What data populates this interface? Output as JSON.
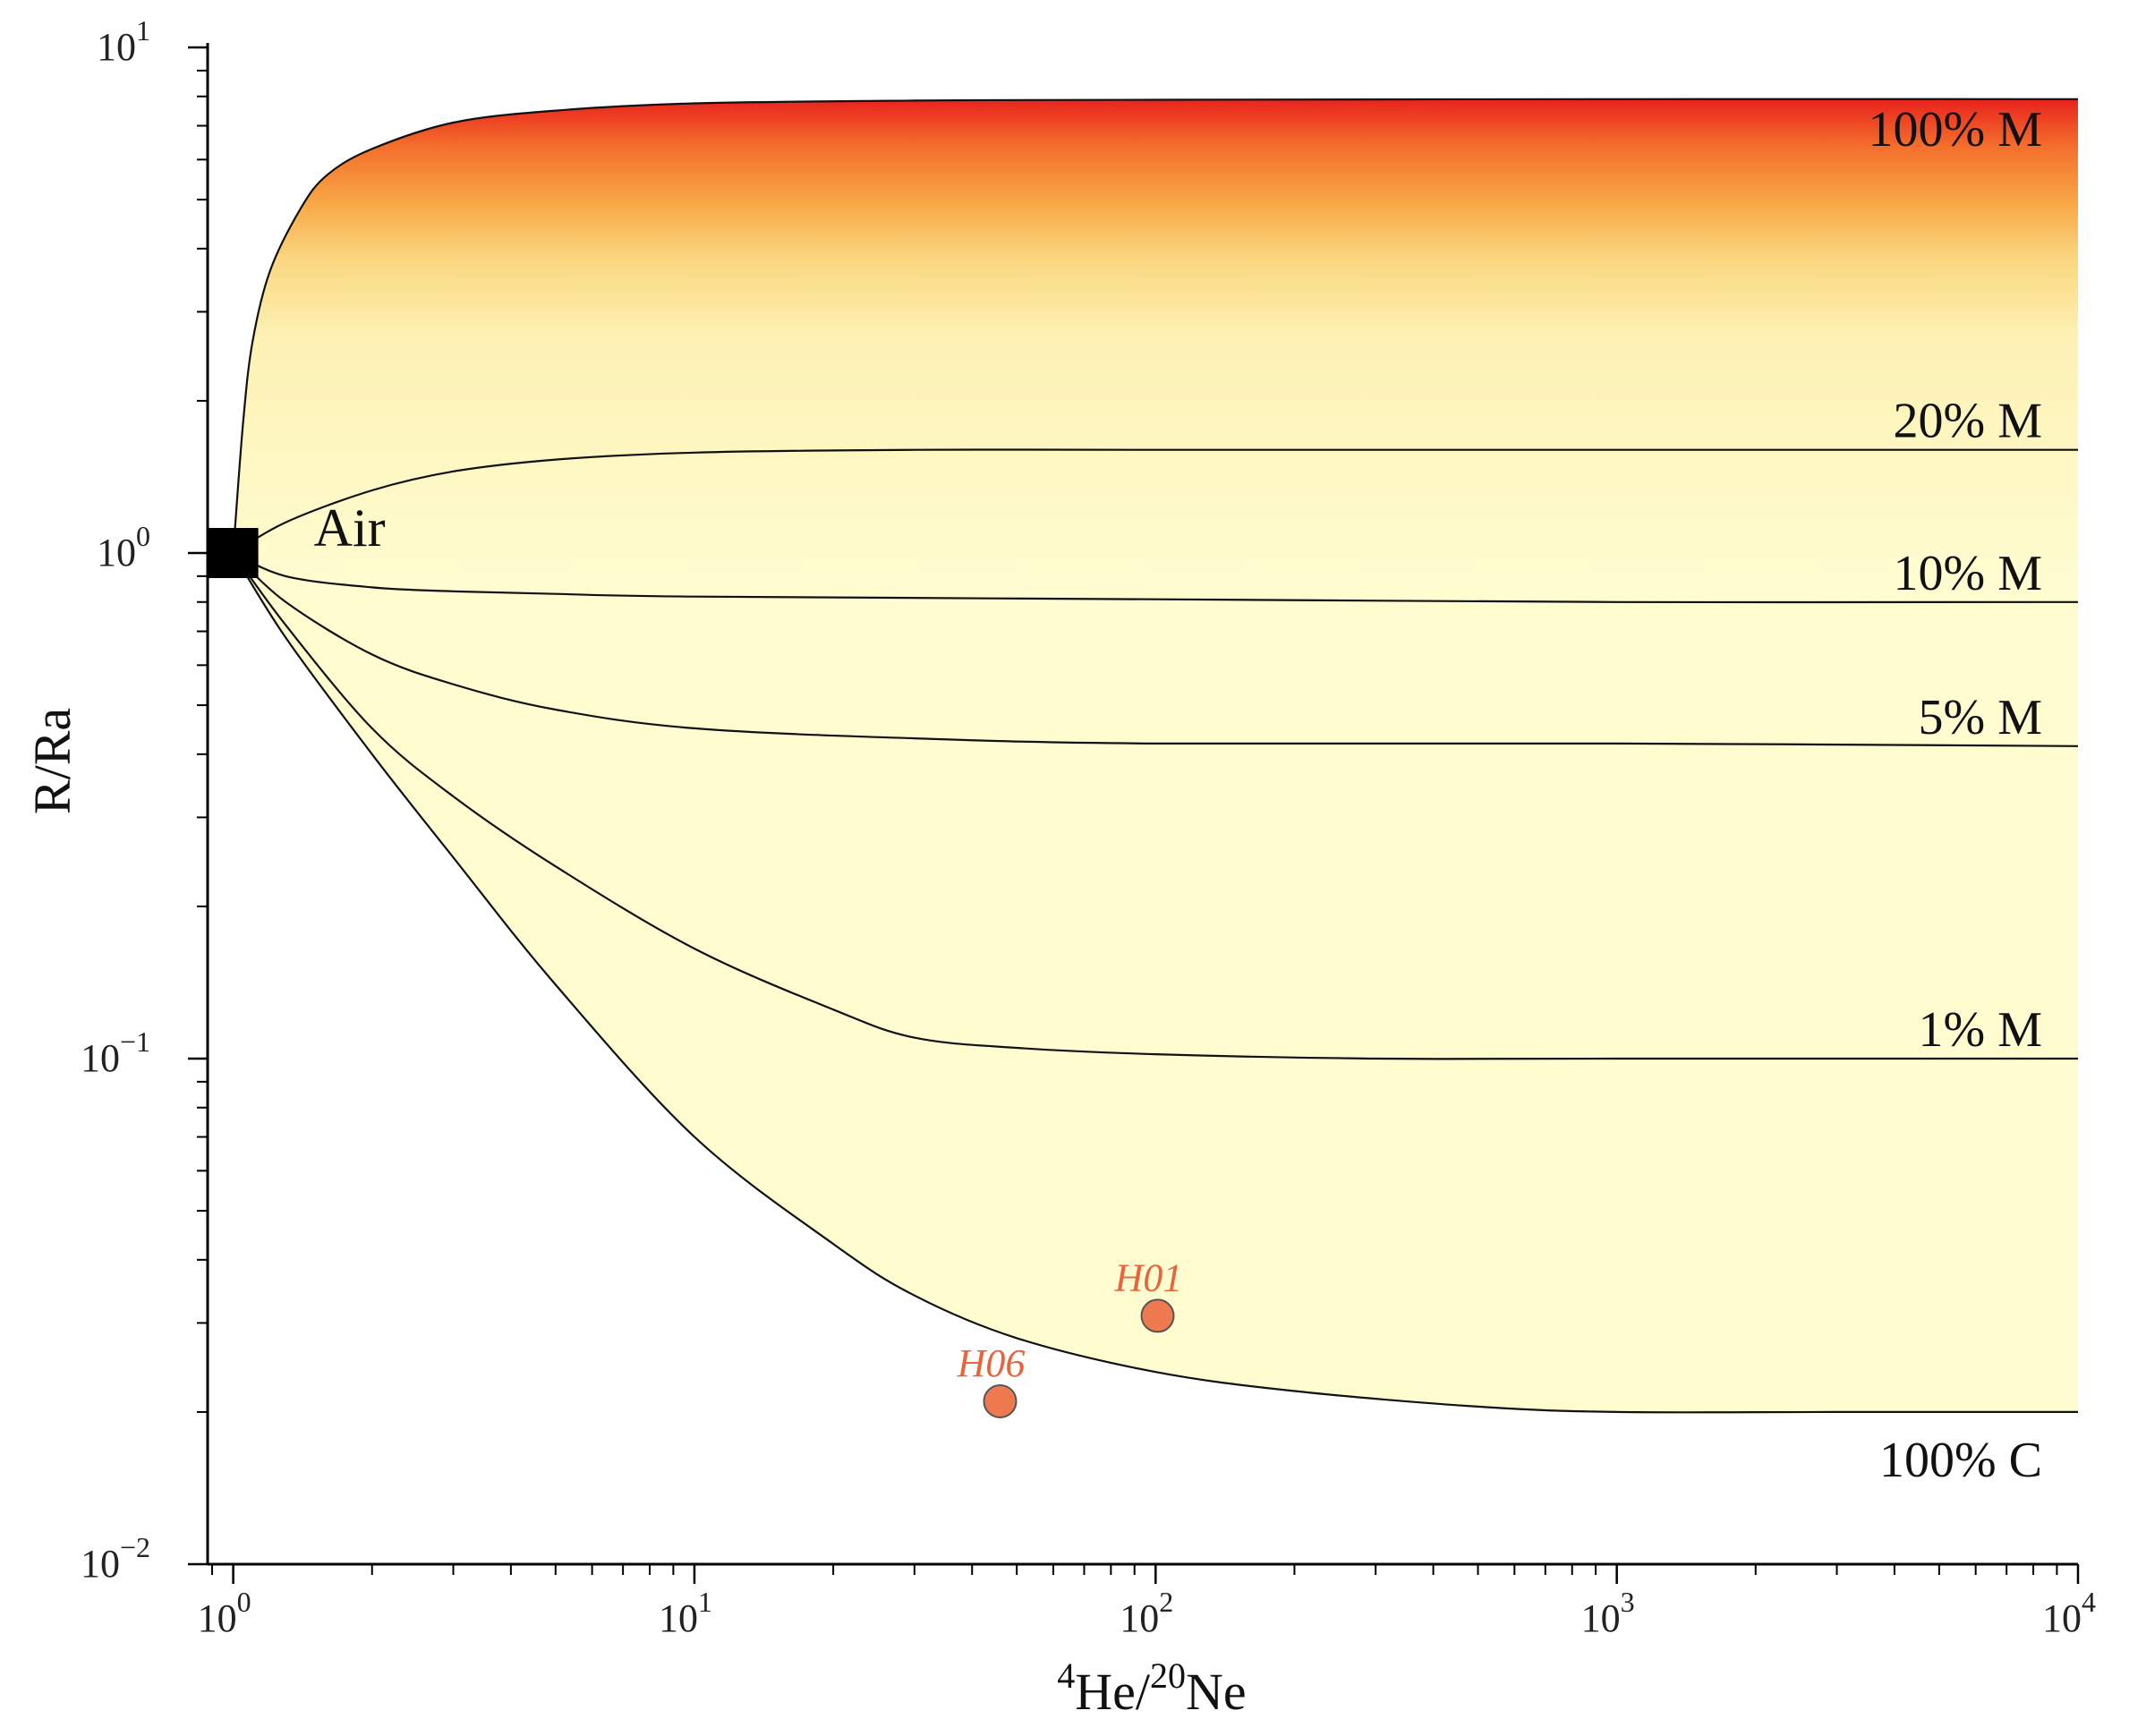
{
  "chart_data": {
    "type": "line",
    "x_scale": "log",
    "y_scale": "log",
    "xlim": [
      0.88,
      10000
    ],
    "ylim": [
      0.01,
      10
    ],
    "xlabel": {
      "sup1": "4",
      "base1": "He/",
      "sup2": "20",
      "base2": "Ne"
    },
    "ylabel": "R/Ra",
    "x_ticks": [
      {
        "value": 1,
        "base": "10",
        "exp": "0"
      },
      {
        "value": 10,
        "base": "10",
        "exp": "1"
      },
      {
        "value": 100,
        "base": "10",
        "exp": "2"
      },
      {
        "value": 1000,
        "base": "10",
        "exp": "3"
      },
      {
        "value": 10000,
        "base": "10",
        "exp": "4"
      }
    ],
    "y_ticks": [
      {
        "value": 0.01,
        "base": "10",
        "exp": "−2"
      },
      {
        "value": 0.1,
        "base": "10",
        "exp": "−1"
      },
      {
        "value": 1,
        "base": "10",
        "exp": "0"
      },
      {
        "value": 10,
        "base": "10",
        "exp": "1"
      }
    ],
    "gradient_colors": [
      "#e8231d",
      "#f46f2c",
      "#f9a847",
      "#fbd882",
      "#fdf2b4",
      "#fffcd0"
    ],
    "series": [
      {
        "name": "100% M",
        "x": [
          1,
          1.05,
          1.1,
          1.2,
          1.4,
          1.6,
          2,
          3,
          5,
          10,
          30,
          100,
          1000,
          10000
        ],
        "y": [
          1,
          1.8,
          2.6,
          3.6,
          4.8,
          5.6,
          6.3,
          7.1,
          7.5,
          7.75,
          7.85,
          7.88,
          7.9,
          7.9
        ]
      },
      {
        "name": "20% M",
        "x": [
          1,
          1.3,
          2,
          3,
          5,
          10,
          30,
          100,
          1000,
          10000
        ],
        "y": [
          1,
          1.15,
          1.33,
          1.45,
          1.53,
          1.58,
          1.6,
          1.6,
          1.6,
          1.6
        ]
      },
      {
        "name": "10% M",
        "x": [
          1,
          1.3,
          2,
          3,
          5,
          10,
          100,
          1000,
          10000
        ],
        "y": [
          1,
          0.9,
          0.855,
          0.84,
          0.83,
          0.82,
          0.81,
          0.8,
          0.8
        ]
      },
      {
        "name": "5% M",
        "x": [
          1,
          1.3,
          2,
          3,
          5,
          10,
          30,
          100,
          1000,
          10000
        ],
        "y": [
          1,
          0.8,
          0.63,
          0.55,
          0.49,
          0.45,
          0.43,
          0.42,
          0.42,
          0.415
        ]
      },
      {
        "name": "1% M",
        "x": [
          1,
          1.3,
          2,
          3,
          5,
          10,
          20,
          30,
          50,
          100,
          300,
          1000,
          10000
        ],
        "y": [
          1,
          0.72,
          0.45,
          0.33,
          0.24,
          0.165,
          0.125,
          0.11,
          0.105,
          0.102,
          0.1,
          0.1,
          0.1
        ]
      },
      {
        "name": "100% C",
        "x": [
          1,
          1.3,
          2,
          3,
          5,
          10,
          20,
          30,
          50,
          100,
          200,
          500,
          1000,
          3000,
          10000
        ],
        "y": [
          1,
          0.68,
          0.4,
          0.25,
          0.14,
          0.07,
          0.043,
          0.034,
          0.028,
          0.024,
          0.022,
          0.0205,
          0.02,
          0.02,
          0.02
        ]
      }
    ],
    "air_point": {
      "label": "Air",
      "x": 1,
      "y": 1
    },
    "samples": [
      {
        "label": "H01",
        "x": 101,
        "y": 0.031,
        "color": "#f07a50"
      },
      {
        "label": "H06",
        "x": 46,
        "y": 0.021,
        "color": "#f07a50"
      }
    ]
  }
}
